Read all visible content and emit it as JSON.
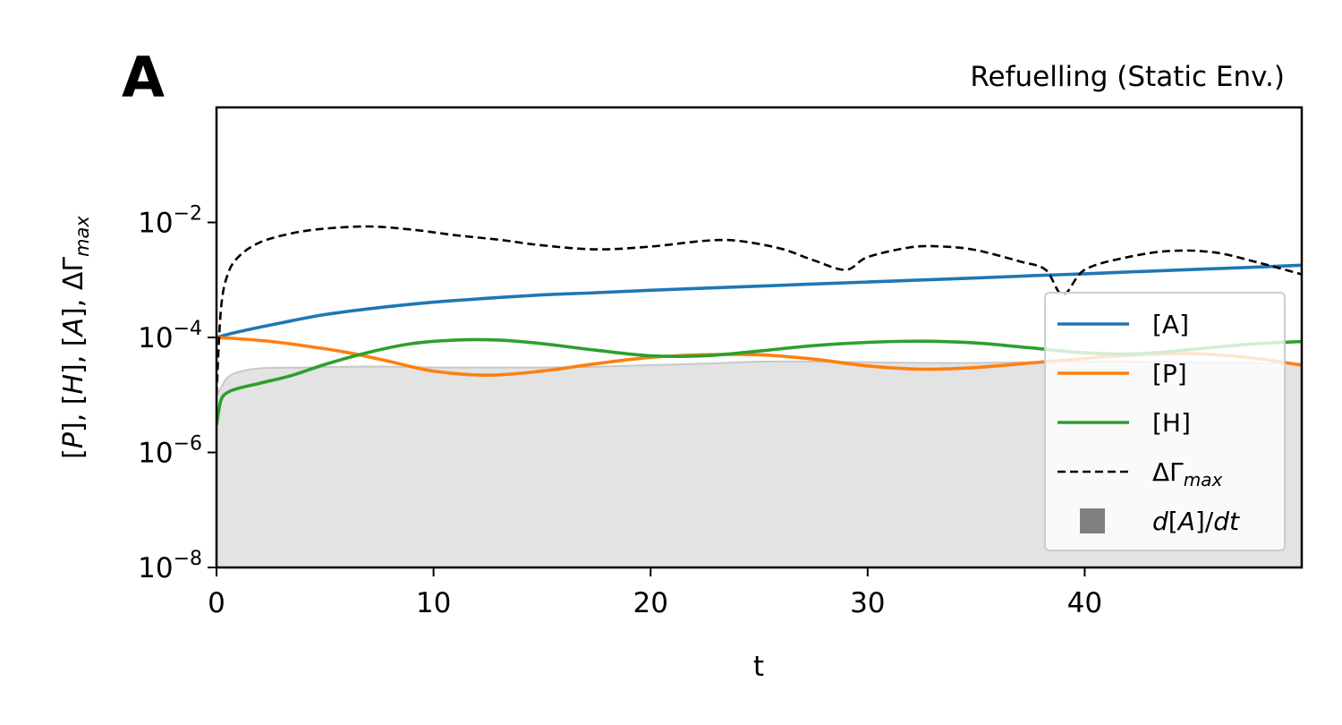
{
  "panel_label": "A",
  "chart_data": {
    "type": "line",
    "title": "Refuelling (Static Env.)",
    "xlabel": "t",
    "ylabel": "[P], [H], [A], ΔΓ_max",
    "ylabel_parts": [
      "[",
      "P",
      "], [",
      "H",
      "], [",
      "A",
      "], ΔΓ",
      "max"
    ],
    "xlim": [
      0,
      50
    ],
    "ylim": [
      1e-08,
      1
    ],
    "yscale": "log",
    "xticks": [
      0,
      10,
      20,
      30,
      40
    ],
    "xtick_labels": [
      "0",
      "10",
      "20",
      "30",
      "40"
    ],
    "yticks": [
      1e-08,
      1e-06,
      0.0001,
      0.01
    ],
    "ytick_labels": [
      {
        "base": "10",
        "exp": "−8"
      },
      {
        "base": "10",
        "exp": "−6"
      },
      {
        "base": "10",
        "exp": "−4"
      },
      {
        "base": "10",
        "exp": "−2"
      }
    ],
    "grid": false,
    "legend_position": "lower right",
    "series": [
      {
        "name": "[A]",
        "color": "#1f77b4",
        "style": "solid",
        "x": [
          0,
          1,
          3,
          5,
          7.5,
          10,
          12.5,
          15,
          17.5,
          20,
          22.5,
          25,
          27.5,
          30,
          32.5,
          35,
          37.5,
          40,
          42.5,
          45,
          47.5,
          50
        ],
        "y": [
          0.0001,
          0.000125,
          0.00018,
          0.00025,
          0.00033,
          0.00041,
          0.00048,
          0.00055,
          0.0006,
          0.00066,
          0.00072,
          0.00078,
          0.00085,
          0.00092,
          0.001,
          0.00108,
          0.00118,
          0.00128,
          0.0014,
          0.00152,
          0.00165,
          0.0018
        ]
      },
      {
        "name": "[P]",
        "color": "#ff7f0e",
        "style": "solid",
        "x": [
          0,
          1,
          2.5,
          4,
          6,
          8,
          10,
          12.5,
          15,
          17.5,
          20,
          22.5,
          25,
          27.5,
          30,
          32.5,
          35,
          37.5,
          40,
          42.5,
          45,
          47.5,
          50
        ],
        "y": [
          0.0001,
          9.5e-05,
          8.5e-05,
          7.2e-05,
          5.5e-05,
          3.8e-05,
          2.6e-05,
          2.2e-05,
          2.6e-05,
          3.5e-05,
          4.5e-05,
          5e-05,
          5e-05,
          4.2e-05,
          3.2e-05,
          2.8e-05,
          3e-05,
          3.6e-05,
          4.3e-05,
          5e-05,
          5.2e-05,
          4.5e-05,
          3.3e-05
        ]
      },
      {
        "name": "[H]",
        "color": "#2ca02c",
        "style": "solid",
        "x": [
          0,
          0.2,
          0.5,
          1,
          2,
          3.5,
          5,
          7,
          9,
          11,
          13,
          15,
          17.5,
          20,
          22.5,
          25,
          27.5,
          30,
          32.5,
          35,
          37.5,
          40,
          42.5,
          45,
          47.5,
          50
        ],
        "y": [
          3e-06,
          8e-06,
          1.1e-05,
          1.3e-05,
          1.6e-05,
          2.2e-05,
          3.4e-05,
          5.5e-05,
          7.8e-05,
          9e-05,
          9e-05,
          7.8e-05,
          6e-05,
          4.8e-05,
          4.8e-05,
          5.8e-05,
          7.2e-05,
          8.2e-05,
          8.6e-05,
          8e-05,
          6.6e-05,
          5.4e-05,
          5.2e-05,
          6.2e-05,
          7.6e-05,
          8.5e-05
        ]
      },
      {
        "name": "ΔΓ_max",
        "label_parts": [
          "ΔΓ",
          "max"
        ],
        "color": "#000000",
        "style": "dashed",
        "x": [
          0,
          0.2,
          0.5,
          1,
          2,
          3.5,
          5,
          7,
          9,
          11,
          13,
          15,
          17.5,
          20,
          22.5,
          24,
          26,
          27.5,
          29,
          30,
          32,
          33.5,
          35,
          37,
          38.2,
          39,
          40,
          42,
          44,
          46,
          48,
          50
        ],
        "y": [
          1e-05,
          0.0003,
          0.0012,
          0.0025,
          0.0045,
          0.0065,
          0.0078,
          0.0085,
          0.0075,
          0.006,
          0.005,
          0.004,
          0.0034,
          0.0038,
          0.0048,
          0.0048,
          0.0035,
          0.0022,
          0.0015,
          0.0025,
          0.0037,
          0.0038,
          0.0033,
          0.0021,
          0.0015,
          0.00055,
          0.0015,
          0.0025,
          0.0032,
          0.003,
          0.002,
          0.00125
        ]
      },
      {
        "name": "d[A]/dt",
        "label_parts": [
          "d",
          "[",
          "A",
          "]/",
          "dt"
        ],
        "color": "#808080",
        "style": "fill",
        "x": [
          0,
          0.2,
          0.5,
          1,
          2,
          4,
          6,
          8,
          10,
          12.5,
          15,
          17.5,
          20,
          22.5,
          25,
          27.5,
          30,
          32.5,
          35,
          37.5,
          40,
          42.5,
          45,
          47.5,
          50
        ],
        "y": [
          1e-05,
          1.3e-05,
          2e-05,
          2.5e-05,
          2.9e-05,
          3e-05,
          3.1e-05,
          3.1e-05,
          3e-05,
          3e-05,
          3e-05,
          3.1e-05,
          3.3e-05,
          3.5e-05,
          3.8e-05,
          3.8e-05,
          3.7e-05,
          3.6e-05,
          3.6e-05,
          3.7e-05,
          3.8e-05,
          3.8e-05,
          3.7e-05,
          3.6e-05,
          3.5e-05
        ]
      }
    ]
  }
}
